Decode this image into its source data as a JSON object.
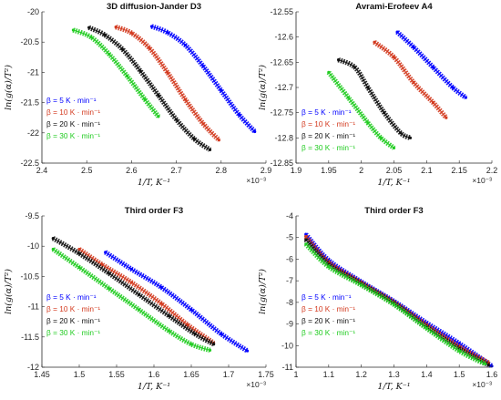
{
  "chart_data": [
    {
      "type": "scatter",
      "title": "3D diffusion-Jander D3",
      "xlabel": "1/T, K⁻¹",
      "ylabel": "ln(g(α)/T²)",
      "x_multiplier": "×10⁻³",
      "xlim": [
        2.4,
        2.9
      ],
      "ylim": [
        -22.5,
        -20
      ],
      "xticks": [
        "2.4",
        "2.5",
        "2.6",
        "2.7",
        "2.8",
        "2.9"
      ],
      "yticks": [
        "-22.5",
        "-22",
        "-21.5",
        "-21",
        "-20.5",
        "-20"
      ],
      "legend": "left-center",
      "series": [
        {
          "name": "β = 5 K · min⁻¹",
          "color": "#0000ff",
          "x": [
            2.645,
            2.68,
            2.72,
            2.76,
            2.8,
            2.84,
            2.875
          ],
          "y": [
            -20.24,
            -20.34,
            -20.55,
            -20.9,
            -21.3,
            -21.7,
            -21.98
          ]
        },
        {
          "name": "β = 10 K · min⁻¹",
          "color": "#d33a1f",
          "x": [
            2.565,
            2.6,
            2.64,
            2.68,
            2.72,
            2.76,
            2.795
          ],
          "y": [
            -20.25,
            -20.35,
            -20.6,
            -21.0,
            -21.45,
            -21.85,
            -22.12
          ]
        },
        {
          "name": "β = 20 K · min⁻¹",
          "color": "#111111",
          "x": [
            2.505,
            2.54,
            2.58,
            2.62,
            2.66,
            2.7,
            2.74,
            2.775
          ],
          "y": [
            -20.26,
            -20.38,
            -20.62,
            -20.98,
            -21.38,
            -21.78,
            -22.1,
            -22.28
          ]
        },
        {
          "name": "β = 30 K · min⁻¹",
          "color": "#22cc22",
          "x": [
            2.47,
            2.51,
            2.55,
            2.59,
            2.63,
            2.66
          ],
          "y": [
            -20.3,
            -20.42,
            -20.7,
            -21.06,
            -21.45,
            -21.73
          ]
        }
      ]
    },
    {
      "type": "scatter",
      "title": "Avrami-Erofeev A4",
      "xlabel": "1/T, K⁻¹",
      "ylabel": "ln(g(α)/T²)",
      "x_multiplier": "×10⁻³",
      "xlim": [
        1.9,
        2.2
      ],
      "ylim": [
        -12.85,
        -12.55
      ],
      "xticks": [
        "1.9",
        "1.95",
        "2",
        "2.05",
        "2.1",
        "2.15",
        "2.2"
      ],
      "yticks": [
        "-12.85",
        "-12.8",
        "-12.75",
        "-12.7",
        "-12.65",
        "-12.6",
        "-12.55"
      ],
      "legend": "bottom-left",
      "series": [
        {
          "name": "β = 5 K · min⁻¹",
          "color": "#0000ff",
          "x": [
            2.055,
            2.08,
            2.11,
            2.14,
            2.16
          ],
          "y": [
            -12.59,
            -12.62,
            -12.66,
            -12.7,
            -12.72
          ]
        },
        {
          "name": "β = 10 K · min⁻¹",
          "color": "#d33a1f",
          "x": [
            2.02,
            2.05,
            2.08,
            2.11,
            2.13
          ],
          "y": [
            -12.61,
            -12.64,
            -12.69,
            -12.73,
            -12.76
          ]
        },
        {
          "name": "β = 20 K · min⁻¹",
          "color": "#111111",
          "x": [
            1.965,
            1.99,
            2.01,
            2.035,
            2.06,
            2.075
          ],
          "y": [
            -12.645,
            -12.66,
            -12.7,
            -12.75,
            -12.79,
            -12.8
          ]
        },
        {
          "name": "β = 30 K · min⁻¹",
          "color": "#22cc22",
          "x": [
            1.95,
            1.98,
            2.01,
            2.03,
            2.05
          ],
          "y": [
            -12.67,
            -12.72,
            -12.77,
            -12.8,
            -12.82
          ]
        }
      ]
    },
    {
      "type": "scatter",
      "title": "Third order F3",
      "xlabel": "1/T, K⁻¹",
      "ylabel": "ln(g(α)/T²)",
      "x_multiplier": "×10⁻³",
      "xlim": [
        1.45,
        1.75
      ],
      "ylim": [
        -12,
        -9.5
      ],
      "xticks": [
        "1.45",
        "1.5",
        "1.55",
        "1.6",
        "1.65",
        "1.7",
        "1.75"
      ],
      "yticks": [
        "-12",
        "-11.5",
        "-11",
        "-10.5",
        "-10",
        "-9.5"
      ],
      "legend": "left-center",
      "series": [
        {
          "name": "β = 5 K · min⁻¹",
          "color": "#0000ff",
          "x": [
            1.535,
            1.57,
            1.61,
            1.65,
            1.69,
            1.725
          ],
          "y": [
            -10.1,
            -10.38,
            -10.68,
            -11.05,
            -11.45,
            -11.73
          ]
        },
        {
          "name": "β = 10 K · min⁻¹",
          "color": "#d33a1f",
          "x": [
            1.5,
            1.53,
            1.57,
            1.61,
            1.645,
            1.68
          ],
          "y": [
            -10.05,
            -10.3,
            -10.6,
            -10.95,
            -11.3,
            -11.6
          ]
        },
        {
          "name": "β = 20 K · min⁻¹",
          "color": "#111111",
          "x": [
            1.465,
            1.5,
            1.54,
            1.58,
            1.62,
            1.655,
            1.68
          ],
          "y": [
            -9.87,
            -10.12,
            -10.45,
            -10.8,
            -11.15,
            -11.45,
            -11.62
          ]
        },
        {
          "name": "β = 30 K · min⁻¹",
          "color": "#22cc22",
          "x": [
            1.465,
            1.5,
            1.54,
            1.58,
            1.62,
            1.65,
            1.675
          ],
          "y": [
            -10.05,
            -10.35,
            -10.7,
            -11.05,
            -11.4,
            -11.62,
            -11.72
          ]
        }
      ]
    },
    {
      "type": "scatter",
      "title": "Third order F3",
      "xlabel": "1/T, K⁻¹",
      "ylabel": "ln(g(α)/T²)",
      "x_multiplier": "×10⁻³",
      "xlim": [
        1.0,
        1.6
      ],
      "ylim": [
        -11,
        -4
      ],
      "xticks": [
        "1",
        "1.1",
        "1.2",
        "1.3",
        "1.4",
        "1.5",
        "1.6"
      ],
      "yticks": [
        "-11",
        "-10",
        "-9",
        "-8",
        "-7",
        "-6",
        "-5",
        "-4"
      ],
      "legend": "bottom-left",
      "series": [
        {
          "name": "β = 5 K · min⁻¹",
          "color": "#0000ff",
          "x": [
            1.03,
            1.1,
            1.2,
            1.3,
            1.4,
            1.5,
            1.6
          ],
          "y": [
            -4.85,
            -6.05,
            -7.05,
            -7.95,
            -8.95,
            -9.9,
            -10.95
          ]
        },
        {
          "name": "β = 10 K · min⁻¹",
          "color": "#d33a1f",
          "x": [
            1.03,
            1.1,
            1.2,
            1.3,
            1.4,
            1.5,
            1.59
          ],
          "y": [
            -4.95,
            -6.15,
            -7.1,
            -8.0,
            -9.05,
            -10.05,
            -10.8
          ]
        },
        {
          "name": "β = 20 K · min⁻¹",
          "color": "#111111",
          "x": [
            1.03,
            1.1,
            1.2,
            1.3,
            1.4,
            1.5,
            1.59
          ],
          "y": [
            -5.1,
            -6.25,
            -7.15,
            -8.05,
            -9.15,
            -10.15,
            -10.9
          ]
        },
        {
          "name": "β = 30 K · min⁻¹",
          "color": "#22cc22",
          "x": [
            1.03,
            1.1,
            1.2,
            1.3,
            1.4,
            1.5,
            1.58
          ],
          "y": [
            -5.3,
            -6.35,
            -7.2,
            -8.1,
            -9.2,
            -10.25,
            -10.85
          ]
        }
      ]
    }
  ]
}
